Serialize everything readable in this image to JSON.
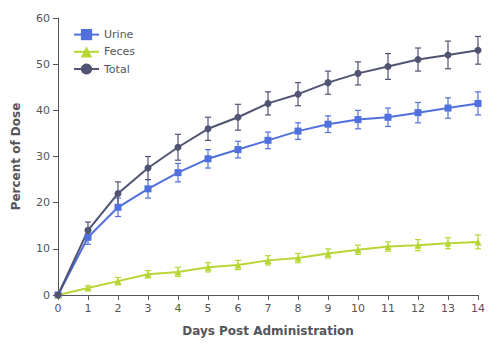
{
  "chart_data": {
    "type": "line",
    "xlabel": "Days Post Administration",
    "ylabel": "Percent of Dose",
    "x": [
      0,
      1,
      2,
      3,
      4,
      5,
      6,
      7,
      8,
      9,
      10,
      11,
      12,
      13,
      14
    ],
    "series": [
      {
        "name": "Urine",
        "marker": "square",
        "values": [
          0,
          12.5,
          19.0,
          23.0,
          26.5,
          29.5,
          31.5,
          33.5,
          35.5,
          37.0,
          38.0,
          38.5,
          39.5,
          40.5,
          41.5
        ],
        "error": [
          0,
          1.5,
          2.0,
          2.0,
          2.0,
          2.0,
          1.8,
          1.8,
          1.8,
          1.8,
          2.0,
          2.0,
          2.2,
          2.2,
          2.5
        ]
      },
      {
        "name": "Feces",
        "marker": "triangle",
        "values": [
          0,
          1.5,
          3.0,
          4.5,
          5.0,
          6.0,
          6.5,
          7.5,
          8.0,
          9.0,
          9.8,
          10.5,
          10.8,
          11.2,
          11.5
        ],
        "error": [
          0,
          0.5,
          0.8,
          0.8,
          1.0,
          1.0,
          1.0,
          1.0,
          1.0,
          1.0,
          1.0,
          1.0,
          1.2,
          1.2,
          1.5
        ]
      },
      {
        "name": "Total",
        "marker": "circle",
        "values": [
          0,
          14.0,
          22.0,
          27.5,
          32.0,
          36.0,
          38.5,
          41.5,
          43.5,
          46.0,
          48.0,
          49.5,
          51.0,
          52.0,
          53.0
        ],
        "error": [
          0,
          1.8,
          2.5,
          2.5,
          2.8,
          2.5,
          2.8,
          2.5,
          2.5,
          2.5,
          2.5,
          2.8,
          2.5,
          3.0,
          3.0
        ]
      }
    ],
    "xlim": [
      0,
      14
    ],
    "xticks": [
      0,
      1,
      2,
      3,
      4,
      5,
      6,
      7,
      8,
      9,
      10,
      11,
      12,
      13,
      14
    ],
    "ylim": [
      0,
      60
    ],
    "yticks": [
      0,
      10,
      20,
      30,
      40,
      50,
      60
    ],
    "legend": "upper left",
    "grid": false
  }
}
